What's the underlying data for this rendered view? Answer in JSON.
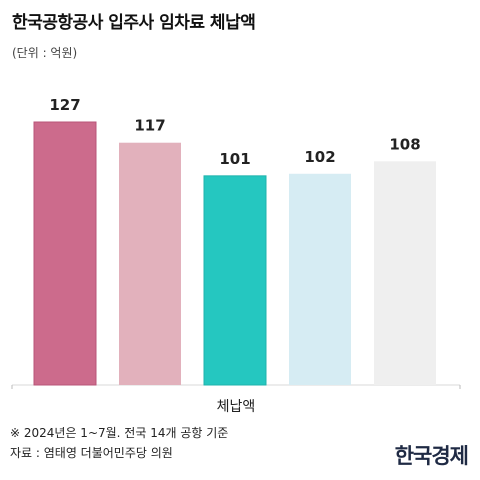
{
  "title": "한국공항공사 입주사 임차료 체납액",
  "unit": "(단위 : 억원)",
  "chart_data": {
    "type": "bar",
    "categories": [
      "",
      "",
      "",
      "",
      ""
    ],
    "xlabel": "체납액",
    "values": [
      127,
      117,
      101,
      102,
      108
    ],
    "colors": [
      "#cc6b8c",
      "#e2b1bc",
      "#25c7c0",
      "#d6ecf3",
      "#efefef"
    ],
    "ylim": [
      0,
      127
    ],
    "grid": false,
    "legend": "none"
  },
  "notes": [
    "※ 2024년은 1~7월. 전국 14개 공항 기준",
    "자료 : 염태영 더불어민주당 의원"
  ],
  "brand": "한국경제"
}
